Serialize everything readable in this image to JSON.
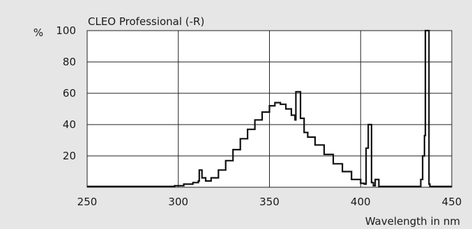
{
  "chart_data": {
    "type": "line",
    "title": "CLEO Professional (-R)",
    "ylabel": "%",
    "xlabel": "Wavelength in nm",
    "xlim": [
      250,
      450
    ],
    "ylim": [
      0,
      100
    ],
    "x_ticks": [
      250,
      300,
      350,
      400,
      450
    ],
    "y_ticks": [
      20,
      40,
      60,
      80,
      100
    ],
    "grid": true,
    "series": [
      {
        "values": [
          [
            250,
            0.5
          ],
          [
            290,
            0.5
          ],
          [
            298,
            1
          ],
          [
            303,
            2
          ],
          [
            308,
            3
          ],
          [
            311,
            4
          ],
          [
            311.5,
            11
          ],
          [
            312.5,
            11
          ],
          [
            313,
            6
          ],
          [
            315,
            4
          ],
          [
            318,
            6
          ],
          [
            322,
            11
          ],
          [
            326,
            17
          ],
          [
            330,
            24
          ],
          [
            334,
            31
          ],
          [
            338,
            37
          ],
          [
            342,
            43
          ],
          [
            346,
            48
          ],
          [
            350,
            52
          ],
          [
            353,
            54
          ],
          [
            356,
            53
          ],
          [
            359,
            50
          ],
          [
            362,
            46
          ],
          [
            364,
            43
          ],
          [
            364.5,
            61
          ],
          [
            366.5,
            61
          ],
          [
            367,
            44
          ],
          [
            369,
            35
          ],
          [
            371,
            32
          ],
          [
            375,
            27
          ],
          [
            380,
            21
          ],
          [
            385,
            15
          ],
          [
            390,
            10
          ],
          [
            395,
            5
          ],
          [
            400,
            2.5
          ],
          [
            402,
            2
          ],
          [
            403,
            25
          ],
          [
            404,
            25
          ],
          [
            404.2,
            40
          ],
          [
            405.5,
            40
          ],
          [
            406,
            3
          ],
          [
            407,
            1
          ],
          [
            408,
            5
          ],
          [
            409,
            5
          ],
          [
            410,
            0.5
          ],
          [
            432,
            0.5
          ],
          [
            433,
            5
          ],
          [
            434,
            20
          ],
          [
            435,
            33
          ],
          [
            435.5,
            100
          ],
          [
            437,
            100
          ],
          [
            437.5,
            2
          ],
          [
            438,
            0.5
          ],
          [
            450,
            0.5
          ]
        ]
      }
    ]
  }
}
